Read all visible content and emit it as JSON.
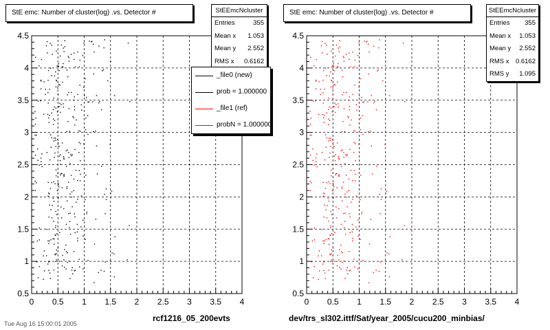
{
  "panels": [
    {
      "title": "StE emc: Number of cluster(log) .vs. Detector #",
      "stats": {
        "name": "StEEmcNcluster",
        "rows": [
          {
            "label": "Entries",
            "value": "355"
          },
          {
            "label": "Mean x",
            "value": "1.053"
          },
          {
            "label": "Mean y",
            "value": "2.552"
          },
          {
            "label": "RMS x",
            "value": "0.6162"
          }
        ]
      },
      "legend": [
        {
          "label": "_file0 (new)",
          "color": "#000000"
        },
        {
          "label": "prob = 1.000000",
          "color": "#000000"
        },
        {
          "label": "_file1 (ref)",
          "color": "#ff0000"
        },
        {
          "label": "probN = 1.000000",
          "color": "#ff0000"
        }
      ],
      "footer": "rcf1216_05_200evts",
      "marker_color": "#000000"
    },
    {
      "title": "StE emc: Number of cluster(log) .vs. Detector #",
      "stats": {
        "name": "StEEmcNcluster",
        "rows": [
          {
            "label": "Entries",
            "value": "355"
          },
          {
            "label": "Mean x",
            "value": "1.053"
          },
          {
            "label": "Mean y",
            "value": "2.552"
          },
          {
            "label": "RMS x",
            "value": "0.6162"
          },
          {
            "label": "RMS y",
            "value": "1.095"
          }
        ]
      },
      "footer": "dev/trs_sl302.ittf/Sat/year_2005/cucu200_minbias/",
      "marker_color": "#ff0000"
    }
  ],
  "statusbar_text": "Tue Aug 16 15:00:01 2005",
  "chart_data": {
    "type": "scatter",
    "title": "StE emc: Number of cluster(log) .vs. Detector #",
    "xlim": [
      0,
      4
    ],
    "ylim": [
      0.5,
      4.5
    ],
    "x_ticks": [
      "0",
      "0.5",
      "1",
      "1.5",
      "2",
      "2.5",
      "3",
      "3.5",
      "4"
    ],
    "y_ticks": [
      "0.5",
      "1",
      "1.5",
      "2",
      "2.5",
      "3",
      "3.5",
      "4",
      "4.5"
    ],
    "grid": true,
    "entries": 355,
    "mean_x": 1.053,
    "mean_y": 2.552,
    "rms_x": 0.6162,
    "rms_y": 1.095,
    "series": [
      {
        "name": "_file0 (new)",
        "color": "#000000"
      },
      {
        "name": "_file1 (ref)",
        "color": "#ff0000"
      }
    ]
  }
}
